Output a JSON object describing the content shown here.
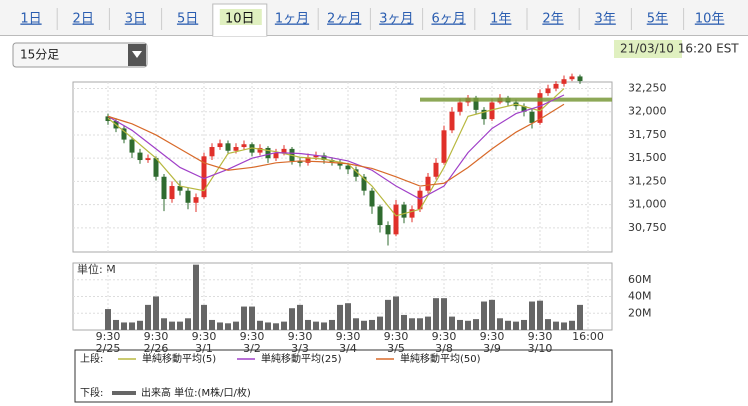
{
  "tabs": [
    "1日",
    "2日",
    "3日",
    "5日",
    "10日",
    "1ヶ月",
    "2ヶ月",
    "3ヶ月",
    "6ヶ月",
    "1年",
    "2年",
    "3年",
    "5年",
    "10年"
  ],
  "selected_tab": 4,
  "dropdown": "15分足",
  "timestamp": "21/03/10 16:20 EST",
  "legend": {
    "upper_label": "上段:",
    "lower_label": "下段:"
  },
  "chart_data": [
    {
      "type": "candlestick",
      "up_color": "#e0302a",
      "down_color": "#2f6b2f",
      "x": [
        0,
        1,
        2,
        3,
        4,
        5,
        6,
        7,
        8,
        9,
        10,
        11,
        12,
        13,
        14,
        15,
        16,
        17,
        18,
        19,
        20,
        21,
        22,
        23,
        24,
        25,
        26,
        27,
        28,
        29,
        30,
        31,
        32,
        33,
        34,
        35,
        36,
        37,
        38,
        39,
        40,
        41,
        42,
        43,
        44,
        45,
        46,
        47,
        48,
        49,
        50,
        51,
        52,
        53,
        54,
        55,
        56,
        57,
        58,
        59
      ],
      "open": [
        31950,
        31900,
        31820,
        31700,
        31560,
        31480,
        31500,
        31300,
        31060,
        31200,
        31150,
        31020,
        31080,
        31520,
        31620,
        31660,
        31580,
        31620,
        31650,
        31560,
        31610,
        31500,
        31560,
        31600,
        31470,
        31450,
        31510,
        31530,
        31480,
        31460,
        31420,
        31380,
        31300,
        31150,
        30980,
        30780,
        30680,
        31000,
        30860,
        30950,
        31150,
        31300,
        31450,
        31800,
        32000,
        32100,
        32150,
        32020,
        31920,
        32100,
        32150,
        32100,
        32060,
        32000,
        31880,
        32200,
        32250,
        32300,
        32350,
        32380
      ],
      "high": [
        31980,
        31930,
        31850,
        31730,
        31600,
        31540,
        31520,
        31330,
        31250,
        31260,
        31180,
        31120,
        31560,
        31660,
        31700,
        31690,
        31660,
        31690,
        31670,
        31650,
        31630,
        31600,
        31640,
        31620,
        31510,
        31550,
        31570,
        31560,
        31510,
        31490,
        31450,
        31410,
        31330,
        31180,
        31000,
        30820,
        31050,
        31030,
        30990,
        31190,
        31340,
        31500,
        31850,
        32050,
        32140,
        32180,
        32170,
        32050,
        32140,
        32190,
        32170,
        32130,
        32090,
        32030,
        32240,
        32290,
        32330,
        32390,
        32410,
        32400
      ],
      "low": [
        31860,
        31780,
        31660,
        31500,
        31440,
        31450,
        31260,
        30930,
        31020,
        31100,
        30950,
        30920,
        31060,
        31480,
        31590,
        31540,
        31550,
        31590,
        31520,
        31530,
        31450,
        31470,
        31530,
        31430,
        31410,
        31420,
        31480,
        31440,
        31420,
        31380,
        31330,
        31250,
        31100,
        30900,
        30700,
        30560,
        30660,
        30800,
        30810,
        30920,
        31120,
        31270,
        31430,
        31770,
        31960,
        32060,
        31980,
        31860,
        31900,
        32080,
        32060,
        32020,
        31950,
        31820,
        31860,
        32170,
        32220,
        32270,
        32330,
        32300
      ],
      "close": [
        31900,
        31820,
        31700,
        31560,
        31480,
        31500,
        31300,
        31060,
        31200,
        31150,
        31020,
        31080,
        31520,
        31620,
        31660,
        31580,
        31620,
        31650,
        31560,
        31610,
        31500,
        31560,
        31600,
        31470,
        31450,
        31510,
        31530,
        31480,
        31460,
        31420,
        31380,
        31300,
        31150,
        30980,
        30780,
        30680,
        31000,
        30860,
        30950,
        31150,
        31300,
        31450,
        31800,
        32000,
        32100,
        32150,
        32020,
        31920,
        32100,
        32150,
        32100,
        32060,
        32000,
        31880,
        32200,
        32250,
        32300,
        32350,
        32380,
        32330
      ],
      "series": [
        {
          "name": "単純移動平均(5)",
          "color": "#b8b840",
          "x": [
            0,
            3,
            6,
            9,
            12,
            15,
            18,
            21,
            24,
            27,
            30,
            33,
            36,
            39,
            42,
            45,
            48,
            51,
            54,
            57
          ],
          "values": [
            31930,
            31720,
            31500,
            31200,
            31150,
            31550,
            31610,
            31570,
            31510,
            31490,
            31440,
            31200,
            30880,
            30950,
            31400,
            31950,
            32020,
            32080,
            32010,
            32250
          ]
        },
        {
          "name": "単純移動平均(25)",
          "color": "#a040c8",
          "x": [
            0,
            3,
            6,
            9,
            12,
            15,
            18,
            21,
            24,
            27,
            30,
            33,
            36,
            39,
            42,
            45,
            48,
            51,
            54,
            57
          ],
          "values": [
            31950,
            31800,
            31600,
            31400,
            31280,
            31380,
            31500,
            31560,
            31550,
            31520,
            31470,
            31370,
            31200,
            31060,
            31200,
            31560,
            31820,
            31980,
            32060,
            32180
          ]
        },
        {
          "name": "単純移動平均(50)",
          "color": "#d86a2a",
          "x": [
            0,
            3,
            6,
            9,
            12,
            15,
            18,
            21,
            24,
            27,
            30,
            33,
            36,
            39,
            42,
            45,
            48,
            51,
            54,
            57
          ],
          "values": [
            31950,
            31870,
            31750,
            31600,
            31450,
            31370,
            31400,
            31450,
            31470,
            31460,
            31440,
            31390,
            31300,
            31200,
            31230,
            31400,
            31600,
            31780,
            31920,
            32080
          ]
        }
      ],
      "reference_line": {
        "value": 32130,
        "x_from": 39,
        "color": "#7a9a3a"
      },
      "xlim": [
        -4.375,
        63
      ],
      "ylim": [
        30490,
        32320
      ],
      "yticks": [
        {
          "value": 30750,
          "label": "30,750"
        },
        {
          "value": 31000,
          "label": "31,000"
        },
        {
          "value": 31250,
          "label": "31,250"
        },
        {
          "value": 31500,
          "label": "31,500"
        },
        {
          "value": 31750,
          "label": "31,750"
        },
        {
          "value": 32000,
          "label": "32,000"
        },
        {
          "value": 32250,
          "label": "32,250"
        }
      ],
      "grid": true
    },
    {
      "type": "bar",
      "unit_label": "単位: M",
      "xlim": [
        -4.375,
        63
      ],
      "ylim": [
        0,
        80
      ],
      "yticks": [
        {
          "value": 20,
          "label": "20M"
        },
        {
          "value": 40,
          "label": "40M"
        },
        {
          "value": 60,
          "label": "60M"
        }
      ],
      "xticks": [
        {
          "value": 0,
          "label": "9:30",
          "date": "2/25"
        },
        {
          "value": 6,
          "label": "9:30",
          "date": "2/26"
        },
        {
          "value": 12,
          "label": "9:30",
          "date": "3/1"
        },
        {
          "value": 18,
          "label": "9:30",
          "date": "3/2"
        },
        {
          "value": 24,
          "label": "9:30",
          "date": "3/3"
        },
        {
          "value": 30,
          "label": "9:30",
          "date": "3/4"
        },
        {
          "value": 36,
          "label": "9:30",
          "date": "3/5"
        },
        {
          "value": 42,
          "label": "9:30",
          "date": "3/8"
        },
        {
          "value": 48,
          "label": "9:30",
          "date": "3/9"
        },
        {
          "value": 54,
          "label": "9:30",
          "date": "3/10"
        },
        {
          "value": 60,
          "label": "16:00"
        }
      ],
      "x": [
        0,
        1,
        2,
        3,
        4,
        5,
        6,
        7,
        8,
        9,
        10,
        11,
        12,
        13,
        14,
        15,
        16,
        17,
        18,
        19,
        20,
        21,
        22,
        23,
        24,
        25,
        26,
        27,
        28,
        29,
        30,
        31,
        32,
        33,
        34,
        35,
        36,
        37,
        38,
        39,
        40,
        41,
        42,
        43,
        44,
        45,
        46,
        47,
        48,
        49,
        50,
        51,
        52,
        53,
        54,
        55,
        56,
        57,
        58,
        59
      ],
      "series": [
        {
          "name": "出来高 単位:(M株/口/枚)",
          "color": "#666666",
          "values": [
            25,
            12,
            9,
            9,
            11,
            30,
            40,
            14,
            10,
            10,
            14,
            78,
            30,
            12,
            9,
            8,
            10,
            28,
            28,
            11,
            9,
            8,
            10,
            26,
            30,
            12,
            10,
            9,
            12,
            30,
            32,
            14,
            11,
            12,
            16,
            36,
            40,
            18,
            14,
            14,
            16,
            38,
            38,
            16,
            12,
            11,
            13,
            34,
            36,
            14,
            11,
            10,
            12,
            34,
            35,
            13,
            10,
            9,
            11,
            30
          ]
        }
      ],
      "grid": true
    }
  ]
}
